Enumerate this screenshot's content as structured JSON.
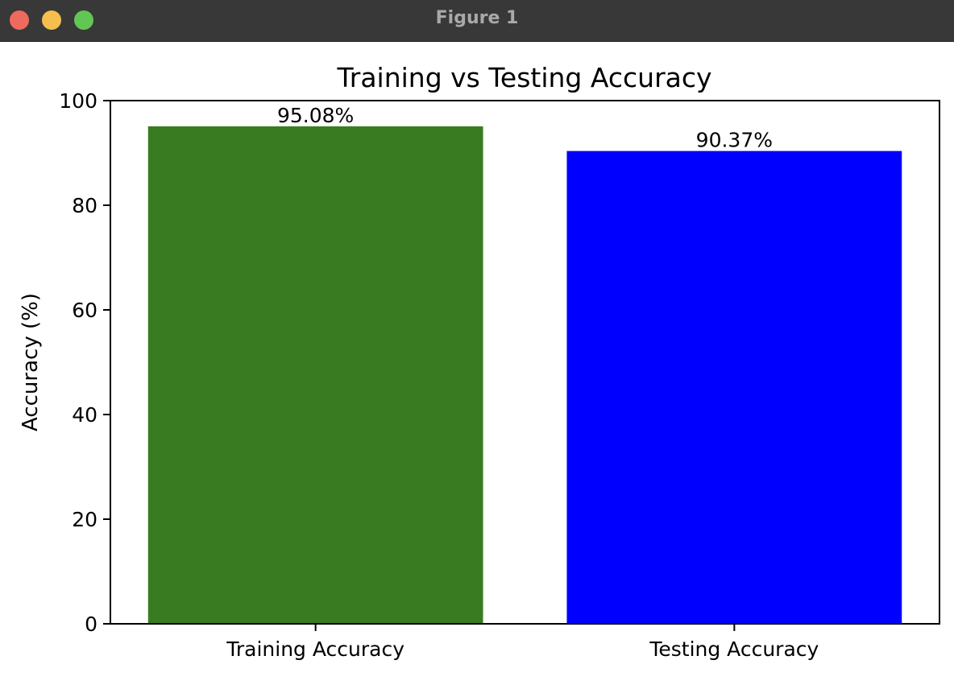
{
  "window": {
    "title": "Figure 1",
    "buttons": {
      "close_color": "#ee6a5f",
      "minimize_color": "#f5bf4f",
      "zoom_color": "#62c655"
    }
  },
  "chart_data": {
    "type": "bar",
    "title": "Training vs Testing Accuracy",
    "xlabel": "",
    "ylabel": "Accuracy (%)",
    "ylim": [
      0,
      100
    ],
    "yticks": [
      0,
      20,
      40,
      60,
      80,
      100
    ],
    "categories": [
      "Training Accuracy",
      "Testing Accuracy"
    ],
    "values": [
      95.08,
      90.37
    ],
    "value_labels": [
      "95.08%",
      "90.37%"
    ],
    "colors": [
      "#397b20",
      "#0000ff"
    ],
    "grid": false,
    "legend": "none"
  }
}
